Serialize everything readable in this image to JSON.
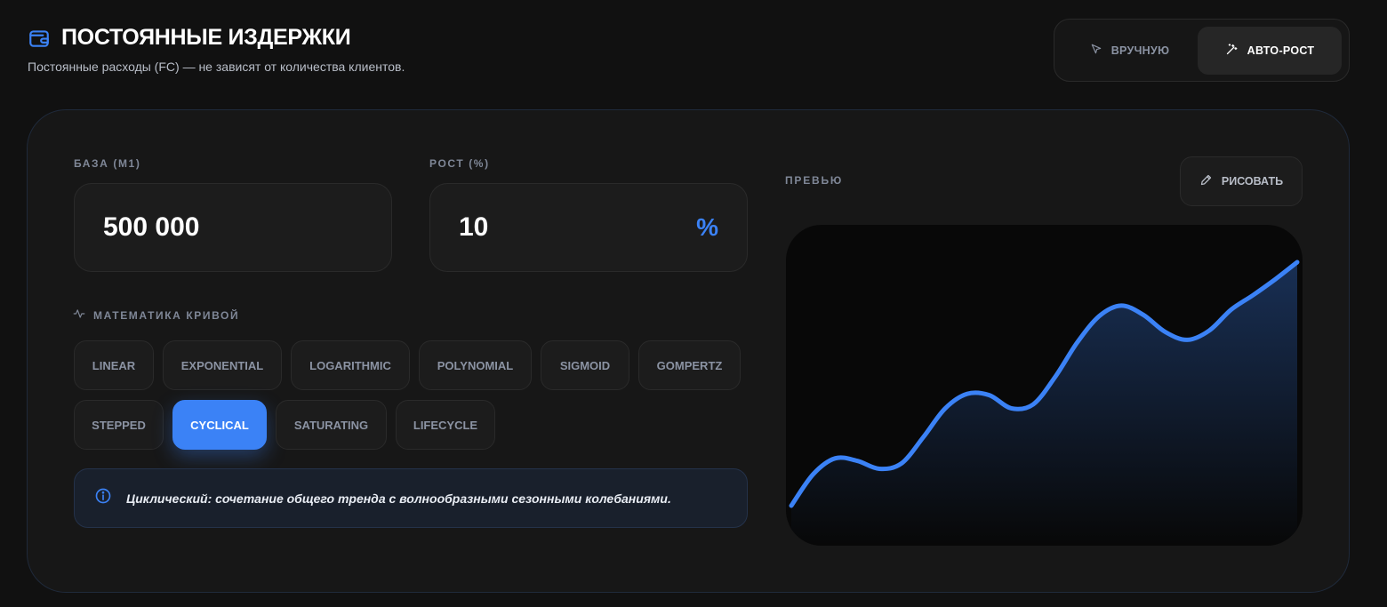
{
  "header": {
    "title": "ПОСТОЯННЫЕ ИЗДЕРЖКИ",
    "subtitle": "Постоянные расходы (FC) — не зависят от количества клиентов.",
    "icon": "wallet-icon"
  },
  "mode_toggle": {
    "manual_label": "ВРУЧНУЮ",
    "auto_label": "АВТО-РОСТ",
    "active": "auto"
  },
  "inputs": {
    "base_label": "БАЗА (M1)",
    "base_value": "500 000",
    "growth_label": "РОСТ (%)",
    "growth_value": "10",
    "growth_unit": "%"
  },
  "curve": {
    "label": "МАТЕМАТИКА КРИВОЙ",
    "options": [
      "LINEAR",
      "EXPONENTIAL",
      "LOGARITHMIC",
      "POLYNOMIAL",
      "SIGMOID",
      "GOMPERTZ",
      "STEPPED",
      "CYCLICAL",
      "SATURATING",
      "LIFECYCLE"
    ],
    "selected": "CYCLICAL",
    "description": "Циклический: сочетание общего тренда с волнообразными сезонными колебаниями."
  },
  "preview": {
    "label": "ПРЕВЬЮ",
    "draw_label": "РИСОВАТЬ"
  },
  "colors": {
    "accent": "#3b82f6",
    "background": "#111111"
  },
  "chart_data": {
    "type": "area",
    "x": [
      1,
      2,
      3,
      4,
      5,
      6,
      7,
      8,
      9,
      10,
      11,
      12,
      13,
      14,
      15,
      16,
      17,
      18,
      19,
      20,
      21,
      22,
      23,
      24
    ],
    "values": [
      0.0,
      0.24,
      0.36,
      0.34,
      0.28,
      0.32,
      0.52,
      0.74,
      0.85,
      0.84,
      0.74,
      0.77,
      0.98,
      1.24,
      1.44,
      1.52,
      1.45,
      1.32,
      1.26,
      1.33,
      1.49,
      1.6,
      1.72,
      1.85
    ],
    "grid": false,
    "legend": "none"
  }
}
